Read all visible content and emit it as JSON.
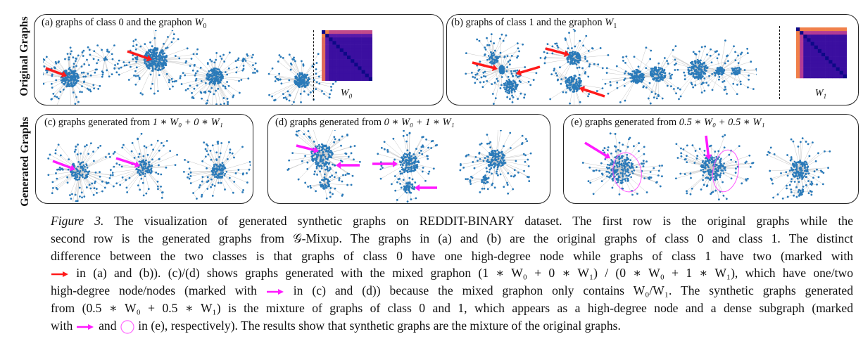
{
  "figure": {
    "row_labels": {
      "top": "Original Graphs",
      "bottom": "Generated Graphs"
    },
    "panels": [
      {
        "id": "a",
        "title_prefix": "(a) graphs of class 0 and the graphon ",
        "title_math": "W",
        "title_sub": "0",
        "graph_count": 4,
        "graphon_label": "W",
        "graphon_sub": "0",
        "marker": "red-arrow"
      },
      {
        "id": "b",
        "title_prefix": "(b) graphs of class 1 and the graphon ",
        "title_math": "W",
        "title_sub": "1",
        "graph_count": 4,
        "graphon_label": "W",
        "graphon_sub": "1",
        "marker": "red-arrow"
      },
      {
        "id": "c",
        "title_prefix": "(c) graphs generated from ",
        "title_formula": "1 ∗ W₀ + 0 ∗ W₁",
        "graph_count": 3,
        "marker": "magenta-arrow"
      },
      {
        "id": "d",
        "title_prefix": "(d) graphs generated from ",
        "title_formula": "0 ∗ W₀ + 1 ∗ W₁",
        "graph_count": 3,
        "marker": "magenta-arrow"
      },
      {
        "id": "e",
        "title_prefix": "(e) graphs generated from ",
        "title_formula": "0.5 ∗ W₀ + 0.5 ∗ W₁",
        "graph_count": 3,
        "marker": "magenta-arrow-and-circle"
      }
    ],
    "colors": {
      "node": "#2a7ab9",
      "edge": "#c8c8c8",
      "red_arrow": "#ff1a1a",
      "magenta_arrow": "#ff1aff",
      "graphon_diag": "#0d0887",
      "graphon_bg": "#3b0fa0",
      "graphon_edge": "#f0804a",
      "graphon_mid": "#b23a96"
    }
  },
  "caption": {
    "label": "Figure 3.",
    "lines": [
      " The visualization of generated synthetic graphs on REDDIT-BINARY dataset. The first row is the original graphs while the",
      "second row is the generated graphs from 𝒢-Mixup. The graphs in (a) and (b) are the original graphs of class 0 and class 1. The distinct",
      "difference between the two classes is that graphs of class 0 have one high-degree node while graphs of class 1 have two (marked with",
      " in (a) and (b)). (c)/(d) shows graphs generated with the mixed graphon (1 ∗ W₀ + 0 ∗ W₁) / (0 ∗ W₀ + 1 ∗ W₁), which have one/two",
      "high-degree node/nodes (marked with ",
      " in (c) and (d)) because the mixed graphon only contains W₀/W₁. The synthetic graphs generated",
      "from (0.5 ∗ W₀ + 0.5 ∗ W₁) is the mixture of graphs of class 0 and 1, which appears as a high-degree node and a dense subgraph (marked",
      "with ",
      " and ",
      " in (e), respectively). The results show that synthetic graphs are the mixture of the original graphs."
    ]
  }
}
